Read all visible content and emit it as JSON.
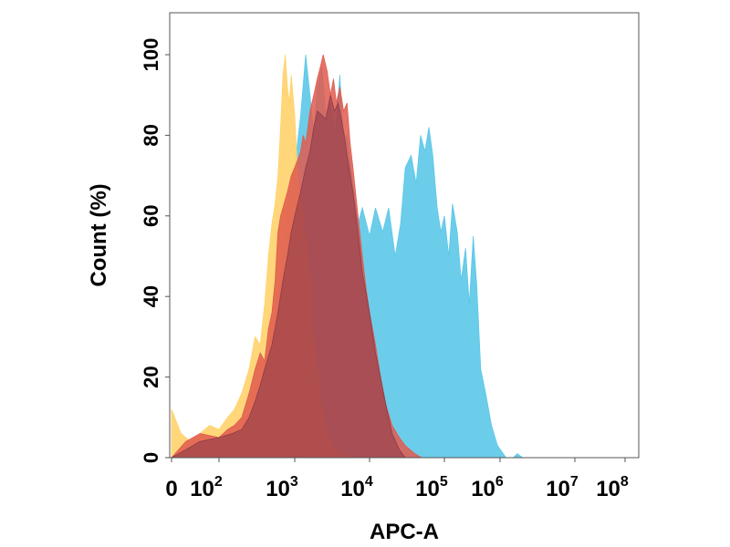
{
  "chart_data": {
    "type": "area",
    "xlabel": "APC-A",
    "ylabel": "Count  (%)",
    "x_scale": "biexponential",
    "ylim": [
      0,
      100
    ],
    "grid": false,
    "legend": "none",
    "y_ticks": [
      "0",
      "20",
      "40",
      "60",
      "80",
      "100"
    ],
    "x_ticks": [
      {
        "value": 0,
        "base": "0",
        "exp": ""
      },
      {
        "value": 100,
        "base": "10",
        "exp": "2"
      },
      {
        "value": 1000,
        "base": "10",
        "exp": "3"
      },
      {
        "value": 10000,
        "base": "10",
        "exp": "4"
      },
      {
        "value": 100000,
        "base": "10",
        "exp": "5"
      },
      {
        "value": 1000000,
        "base": "10",
        "exp": "6"
      },
      {
        "value": 10000000,
        "base": "10",
        "exp": "7"
      },
      {
        "value": 100000000,
        "base": "10",
        "exp": "8"
      }
    ],
    "series": [
      {
        "color": "#5bc8e8",
        "opacity": 0.9,
        "x": [
          0,
          30,
          60,
          100,
          150,
          250,
          400,
          600,
          800,
          1000,
          1200,
          1400,
          1600,
          1800,
          2000,
          2300,
          2600,
          3000,
          3500,
          4000,
          4500,
          5000,
          6000,
          7000,
          8000,
          10000,
          12000,
          15000,
          18000,
          22000,
          26000,
          30000,
          36000,
          42000,
          48000,
          55000,
          62000,
          70000,
          80000,
          90000,
          100000,
          120000,
          140000,
          170000,
          200000,
          240000,
          280000,
          330000,
          380000,
          450000,
          550000,
          700000,
          900000,
          1200000,
          1500000,
          1700000,
          2000000
        ],
        "y": [
          0,
          1,
          3,
          4,
          5,
          10,
          20,
          40,
          60,
          72,
          85,
          100,
          90,
          80,
          92,
          97,
          85,
          88,
          80,
          95,
          78,
          80,
          68,
          58,
          62,
          55,
          62,
          56,
          62,
          50,
          58,
          72,
          75,
          68,
          80,
          76,
          82,
          75,
          62,
          56,
          60,
          50,
          63,
          56,
          44,
          52,
          38,
          55,
          43,
          22,
          16,
          8,
          3,
          0,
          0,
          1,
          0
        ]
      },
      {
        "color": "#ffd36b",
        "opacity": 0.9,
        "x": [
          0,
          20,
          40,
          60,
          80,
          100,
          130,
          160,
          200,
          250,
          300,
          350,
          400,
          450,
          500,
          550,
          600,
          650,
          700,
          750,
          800,
          850,
          900,
          1000,
          1100,
          1250,
          1400,
          1600,
          1800,
          2000,
          2300,
          2700,
          3200,
          4000,
          5000,
          7000,
          10000,
          14000
        ],
        "y": [
          12,
          6,
          4,
          6,
          8,
          7,
          10,
          12,
          16,
          22,
          30,
          28,
          38,
          50,
          58,
          63,
          70,
          82,
          95,
          100,
          92,
          88,
          95,
          85,
          70,
          62,
          55,
          45,
          30,
          22,
          12,
          6,
          3,
          1,
          0.5,
          0,
          0,
          0
        ]
      },
      {
        "color": "#e05a4e",
        "opacity": 0.85,
        "x": [
          0,
          30,
          60,
          100,
          130,
          160,
          200,
          250,
          300,
          350,
          400,
          450,
          500,
          550,
          600,
          650,
          700,
          800,
          900,
          1000,
          1100,
          1200,
          1300,
          1400,
          1500,
          1600,
          1800,
          2000,
          2200,
          2400,
          2700,
          3000,
          3300,
          3600,
          4000,
          4500,
          5000,
          5500,
          6000,
          7000,
          8000,
          9000,
          10000,
          12000,
          14000,
          16000,
          20000,
          25000,
          30000,
          40000,
          50000
        ],
        "y": [
          0,
          4,
          6,
          5,
          7,
          8,
          10,
          16,
          22,
          26,
          24,
          32,
          36,
          44,
          56,
          60,
          62,
          66,
          70,
          72,
          74,
          76,
          80,
          78,
          82,
          86,
          90,
          94,
          97,
          100,
          96,
          90,
          94,
          88,
          92,
          86,
          88,
          78,
          72,
          60,
          50,
          42,
          36,
          28,
          20,
          14,
          8,
          5,
          3,
          1,
          0
        ]
      },
      {
        "color": "#8e3a4a",
        "opacity": 0.6,
        "x": [
          0,
          30,
          60,
          100,
          150,
          200,
          250,
          300,
          350,
          400,
          500,
          600,
          700,
          800,
          900,
          1000,
          1200,
          1400,
          1600,
          1800,
          2000,
          2300,
          2600,
          3000,
          3400,
          3800,
          4200,
          4600,
          5000,
          6000,
          7000,
          8000,
          10000,
          12000,
          14000,
          17000,
          20000,
          25000,
          30000
        ],
        "y": [
          0,
          2,
          4,
          5,
          6,
          7,
          10,
          14,
          18,
          22,
          28,
          36,
          44,
          50,
          56,
          60,
          66,
          72,
          76,
          82,
          86,
          85,
          84,
          90,
          86,
          88,
          84,
          80,
          75,
          66,
          56,
          46,
          36,
          26,
          20,
          12,
          6,
          2,
          0
        ]
      }
    ]
  }
}
